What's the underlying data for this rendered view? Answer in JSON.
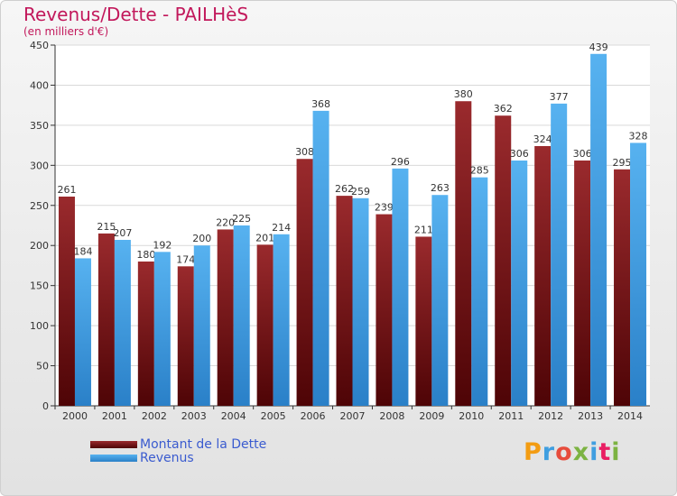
{
  "chart_data": {
    "type": "bar",
    "title": "Revenus/Dette - PAILHèS",
    "subtitle": "(en milliers d'€)",
    "categories": [
      "2000",
      "2001",
      "2002",
      "2003",
      "2004",
      "2005",
      "2006",
      "2007",
      "2008",
      "2009",
      "2010",
      "2011",
      "2012",
      "2013",
      "2014"
    ],
    "series": [
      {
        "name": "Montant de la Dette",
        "color": "#7a1216",
        "values": [
          261,
          215,
          180,
          174,
          220,
          201,
          308,
          262,
          239,
          211,
          380,
          362,
          324,
          306,
          295
        ],
        "labels": [
          "261",
          "215",
          "180",
          "174",
          "220",
          "201",
          "308",
          "262",
          "239",
          "211",
          "380",
          "362",
          "324",
          "306",
          "295"
        ]
      },
      {
        "name": "Revenus",
        "color": "#3f9ee0",
        "values": [
          184,
          207,
          192,
          200,
          225,
          214,
          368,
          259,
          296,
          263,
          285,
          306,
          377,
          439,
          328
        ],
        "labels": [
          "184",
          "207",
          "192",
          "200",
          "225",
          "214",
          "368",
          "259",
          "296",
          "263",
          "285",
          "306",
          "377",
          "439",
          "328"
        ]
      }
    ],
    "ylim": [
      0,
      450
    ],
    "yticks": [
      0,
      50,
      100,
      150,
      200,
      250,
      300,
      350,
      400,
      450
    ],
    "grid": true,
    "legend_position": "bottom-left"
  },
  "logo": {
    "text": "Proxiti",
    "colors": [
      "#f39c12",
      "#3f9ee0",
      "#e74c3c",
      "#7cb342",
      "#3f9ee0",
      "#e91e63",
      "#7cb342"
    ]
  }
}
